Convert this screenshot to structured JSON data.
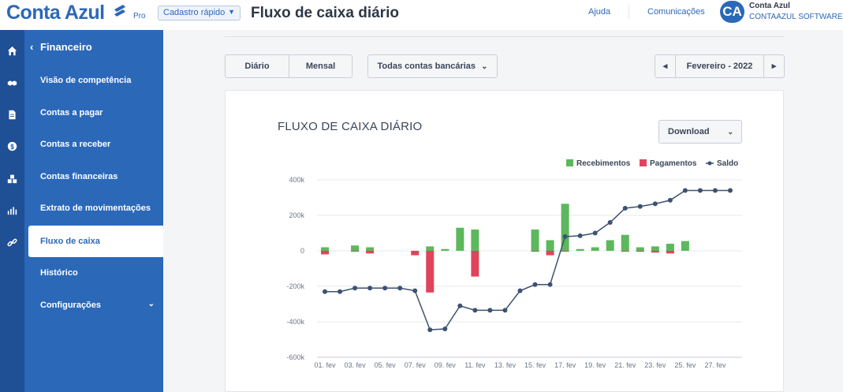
{
  "app": {
    "logo_text": "Conta Azul",
    "plan_label": "Pro",
    "quick_button_label": "Cadastro rápido",
    "page_title": "Fluxo de caixa diário",
    "help_link": "Ajuda",
    "communications_link": "Comunicações",
    "avatar_initials": "CA",
    "user_name": "Conta Azul",
    "user_company": "CONTAAZUL SOFTWARE",
    "brand_color": "#2c68b8",
    "sidebar_color": "#2c68b8",
    "rail_color": "#1f4f95"
  },
  "rail": {
    "icons": [
      "home-icon",
      "handshake-icon",
      "document-icon",
      "dollar-coin-icon",
      "boxes-icon",
      "bar-chart-icon",
      "link-icon"
    ]
  },
  "sidebar": {
    "header_label": "Financeiro",
    "items": [
      {
        "label": "Visão de competência",
        "active": false
      },
      {
        "label": "Contas a pagar",
        "active": false
      },
      {
        "label": "Contas a receber",
        "active": false
      },
      {
        "label": "Contas financeiras",
        "active": false
      },
      {
        "label": "Extrato de movimentações",
        "active": false
      },
      {
        "label": "Fluxo de caixa",
        "active": true
      },
      {
        "label": "Histórico",
        "active": false
      },
      {
        "label": "Configurações",
        "active": false,
        "has_caret": true
      }
    ]
  },
  "toolbar": {
    "daily_label": "Diário",
    "monthly_label": "Mensal",
    "accounts_label": "Todas contas bancárias",
    "period_label": "Fevereiro - 2022",
    "prev_symbol": "◂",
    "next_symbol": "▸"
  },
  "card": {
    "chart_title": "FLUXO DE CAIXA DIÁRIO",
    "download_label": "Download"
  },
  "chart_data": {
    "type": "bar",
    "title": "FLUXO DE CAIXA DIÁRIO",
    "xlabel": "",
    "ylabel": "",
    "ylim": [
      -600000,
      400000
    ],
    "yticks": [
      400000,
      200000,
      0,
      -200000,
      -400000,
      -600000
    ],
    "ytick_labels": [
      "400k",
      "200k",
      "0",
      "-200k",
      "-400k",
      "-600k"
    ],
    "grid": true,
    "legend_position": "top-right",
    "categories": [
      "01. fev",
      "02. fev",
      "03. fev",
      "04. fev",
      "05. fev",
      "06. fev",
      "07. fev",
      "08. fev",
      "09. fev",
      "10. fev",
      "11. fev",
      "12. fev",
      "13. fev",
      "14. fev",
      "15. fev",
      "16. fev",
      "17. fev",
      "18. fev",
      "19. fev",
      "20. fev",
      "21. fev",
      "22. fev",
      "23. fev",
      "24. fev",
      "25. fev",
      "26. fev",
      "27. fev",
      "28. fev"
    ],
    "x_tick_labels": [
      "01. fev",
      "03. fev",
      "05. fev",
      "07. fev",
      "09. fev",
      "11. fev",
      "13. fev",
      "15. fev",
      "17. fev",
      "19. fev",
      "21. fev",
      "23. fev",
      "25. fev",
      "27. fev"
    ],
    "series": [
      {
        "name": "Recebimentos",
        "type": "bar",
        "color": "#5cb85c",
        "values": [
          20000,
          0,
          30000,
          20000,
          0,
          0,
          0,
          25000,
          10000,
          130000,
          120000,
          0,
          0,
          0,
          120000,
          60000,
          265000,
          10000,
          20000,
          60000,
          90000,
          20000,
          25000,
          40000,
          55000,
          0,
          0,
          0
        ]
      },
      {
        "name": "Pagamentos",
        "type": "bar",
        "color": "#e0445c",
        "values": [
          -20000,
          0,
          -5000,
          -15000,
          0,
          0,
          -25000,
          -235000,
          0,
          0,
          -145000,
          0,
          0,
          0,
          -5000,
          -25000,
          -5000,
          0,
          0,
          0,
          -5000,
          -5000,
          -10000,
          -15000,
          0,
          0,
          0,
          0
        ]
      },
      {
        "name": "Saldo",
        "type": "line",
        "color": "#3d5270",
        "values": [
          -230000,
          -230000,
          -210000,
          -210000,
          -210000,
          -210000,
          -225000,
          -445000,
          -440000,
          -310000,
          -335000,
          -335000,
          -335000,
          -225000,
          -190000,
          -190000,
          80000,
          85000,
          100000,
          160000,
          240000,
          250000,
          265000,
          285000,
          340000,
          340000,
          340000,
          340000
        ]
      }
    ]
  }
}
